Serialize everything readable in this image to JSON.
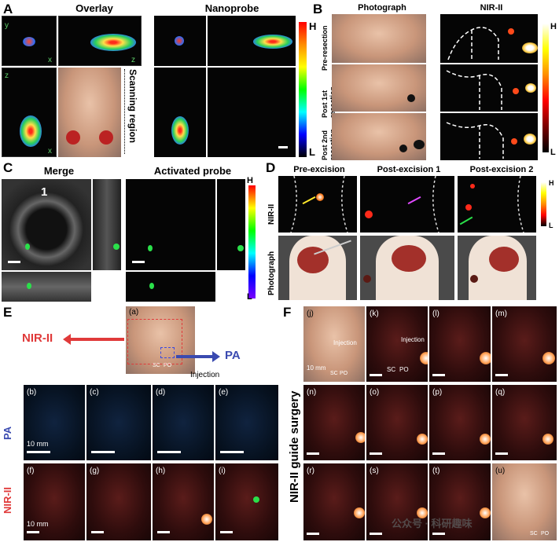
{
  "panelA": {
    "letter": "A",
    "title_overlay": "Overlay",
    "title_nanoprobe": "Nanoprobe",
    "scan_label": "Scanning region",
    "axis_y": "y",
    "axis_x": "x",
    "axis_z": "z",
    "colorbar_high": "H",
    "colorbar_low": "L"
  },
  "panelB": {
    "letter": "B",
    "title_photo": "Photograph",
    "title_nir": "NIR-II",
    "row1": "Pre-resection",
    "row2": "Post 1st resection",
    "row3": "Post 2nd resection",
    "colorbar_high": "H",
    "colorbar_low": "L"
  },
  "panelC": {
    "letter": "C",
    "title_merge": "Merge",
    "title_probe": "Activated probe",
    "number": "1",
    "colorbar_high": "H",
    "colorbar_low": "L"
  },
  "panelD": {
    "letter": "D",
    "col1": "Pre-excision",
    "col2": "Post-excision 1",
    "col3": "Post-excision 2",
    "row_nir": "NIR-II",
    "row_photo": "Photograph",
    "colorbar_high": "H",
    "colorbar_low": "L"
  },
  "panelE": {
    "letter": "E",
    "nir_label": "NIR-II",
    "pa_label": "PA",
    "injection": "Injection",
    "sc": "SC",
    "po": "PO",
    "side_pa": "PA",
    "side_nir": "NIR-II",
    "scale": "10 mm",
    "subs": [
      "(a)",
      "(b)",
      "(c)",
      "(d)",
      "(e)",
      "(f)",
      "(g)",
      "(h)",
      "(i)"
    ]
  },
  "panelF": {
    "letter": "F",
    "side_label": "NIR-II guide surgery",
    "injection": "Injection",
    "sc": "SC",
    "po": "PO",
    "scale": "10 mm",
    "subs": [
      "(j)",
      "(k)",
      "(l)",
      "(m)",
      "(n)",
      "(o)",
      "(p)",
      "(q)",
      "(r)",
      "(s)",
      "(t)",
      "(u)"
    ]
  },
  "watermark": "公众号 · 科研趣味"
}
